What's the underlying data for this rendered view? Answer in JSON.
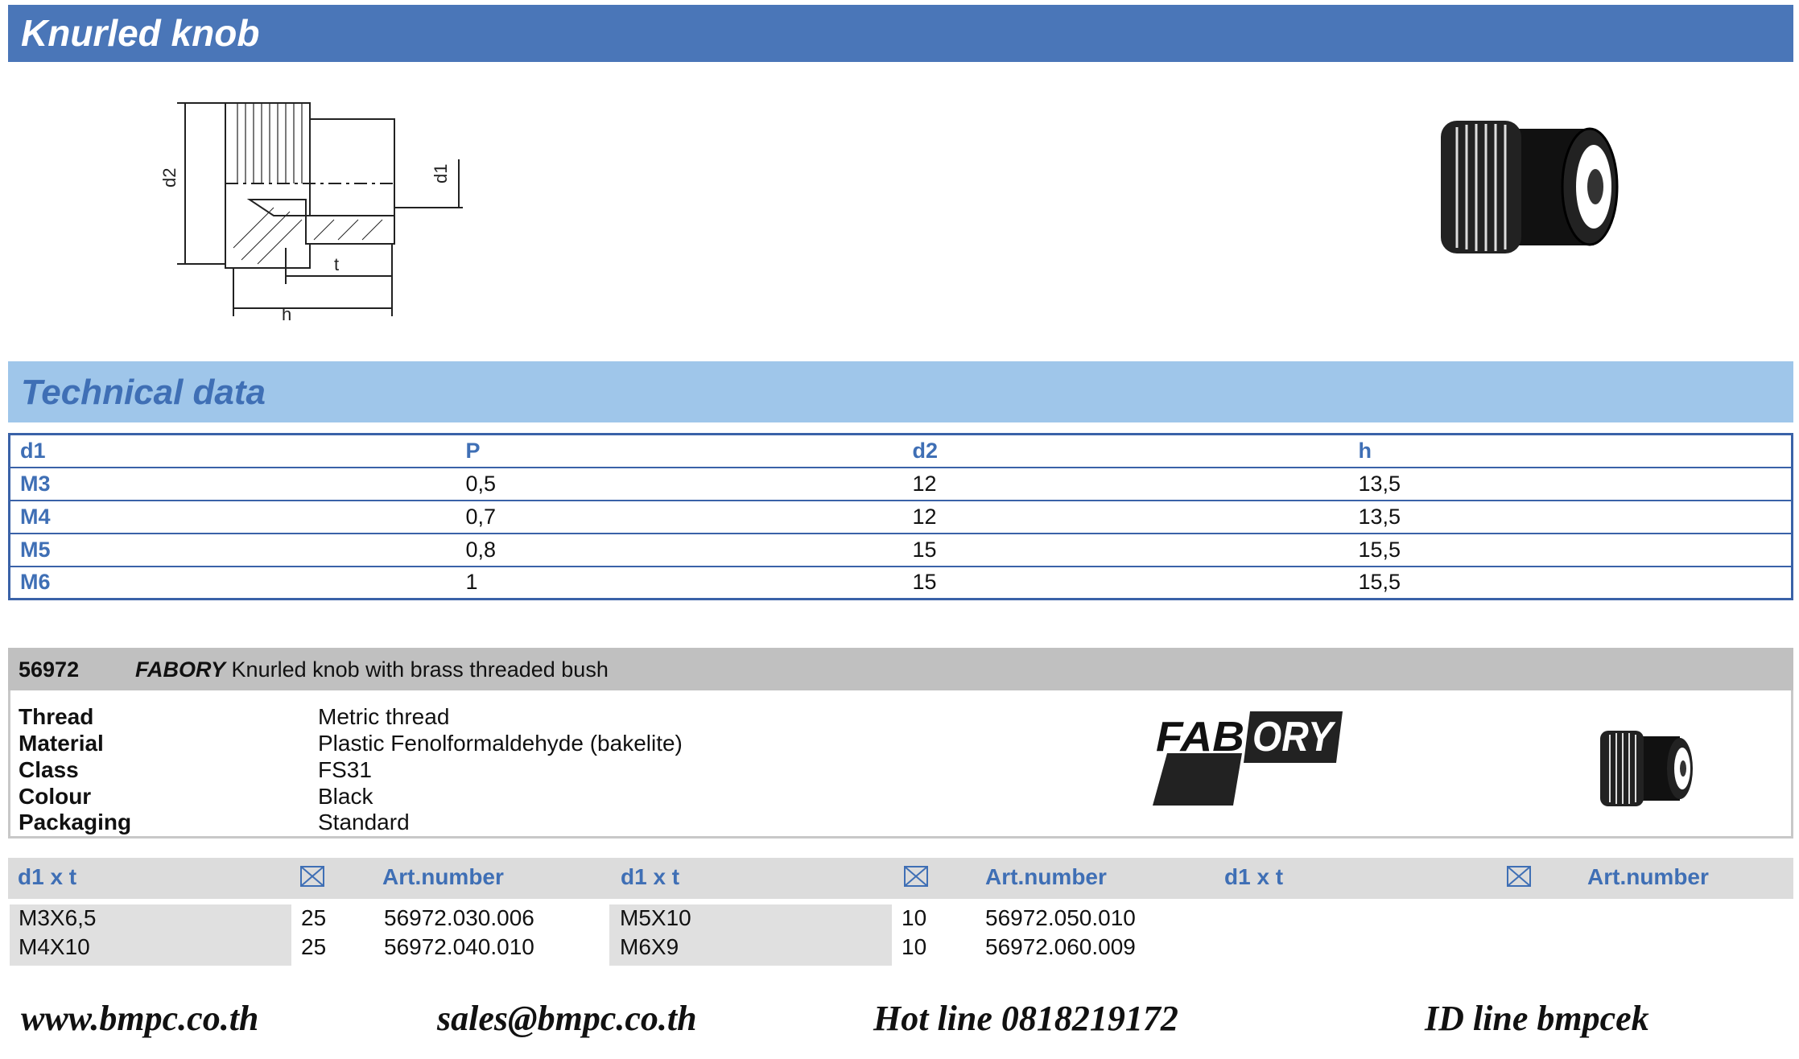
{
  "header": {
    "title": "Knurled knob"
  },
  "technical_data": {
    "title": "Technical data",
    "columns": [
      "d1",
      "P",
      "d2",
      "h"
    ],
    "rows": [
      [
        "M3",
        "0,5",
        "12",
        "13,5"
      ],
      [
        "M4",
        "0,7",
        "12",
        "13,5"
      ],
      [
        "M5",
        "0,8",
        "15",
        "15,5"
      ],
      [
        "M6",
        "1",
        "15",
        "15,5"
      ]
    ]
  },
  "drawing": {
    "labels": {
      "d1": "d1",
      "d2": "d2",
      "t": "t",
      "h": "h"
    }
  },
  "product": {
    "code": "56972",
    "brand": "FABORY",
    "description": "Knurled knob with brass threaded bush",
    "properties": [
      {
        "label": "Thread",
        "value": "Metric thread"
      },
      {
        "label": "Material",
        "value": "Plastic Fenolformaldehyde (bakelite)"
      },
      {
        "label": "Class",
        "value": "FS31"
      },
      {
        "label": "Colour",
        "value": "Black"
      },
      {
        "label": "Packaging",
        "value": "Standard"
      }
    ],
    "logo_text": "FABORY"
  },
  "order_table": {
    "headers": {
      "size": "d1 x t",
      "pack_icon": "envelope-icon",
      "art": "Art.number"
    },
    "groups": [
      {
        "rows": [
          {
            "size": "M3X6,5",
            "qty": "25",
            "art": "56972.030.006"
          },
          {
            "size": "M4X10",
            "qty": "25",
            "art": "56972.040.010"
          }
        ]
      },
      {
        "rows": [
          {
            "size": "M5X10",
            "qty": "10",
            "art": "56972.050.010"
          },
          {
            "size": "M6X9",
            "qty": "10",
            "art": "56972.060.009"
          }
        ]
      },
      {
        "rows": []
      }
    ]
  },
  "footer": {
    "website": "www.bmpc.co.th",
    "email": "sales@bmpc.co.th",
    "hotline": "Hot line 0818219172",
    "line_id": "ID line bmpcek"
  },
  "colors": {
    "title_bar": "#4a76b8",
    "tech_band": "#9fc6ea",
    "accent_text": "#3f6fb5",
    "product_band": "#c0c0c0"
  }
}
